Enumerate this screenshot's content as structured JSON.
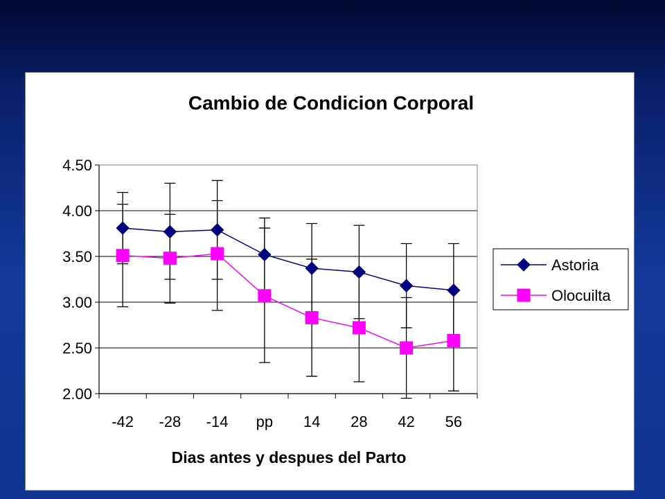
{
  "chart_data": {
    "type": "line",
    "title": "Cambio de Condicion Corporal",
    "xlabel": "Dias antes y despues del Parto",
    "ylabel": "",
    "categories": [
      "-42",
      "-28",
      "-14",
      "pp",
      "14",
      "28",
      "42",
      "56"
    ],
    "ylim": [
      2.0,
      4.5
    ],
    "yticks": [
      "2.00",
      "2.50",
      "3.00",
      "3.50",
      "4.00",
      "4.50"
    ],
    "grid": "horizontal",
    "legend_position": "right",
    "series": [
      {
        "name": "Astoria",
        "marker": "diamond",
        "color": "#000080",
        "values": [
          3.81,
          3.77,
          3.79,
          3.52,
          3.37,
          3.33,
          3.18,
          3.13
        ],
        "error_upper": [
          4.2,
          4.3,
          4.33,
          3.92,
          3.86,
          3.84,
          3.64,
          3.64
        ],
        "error_lower": [
          3.42,
          3.25,
          3.25,
          3.12,
          2.88,
          2.82,
          2.72,
          2.62
        ]
      },
      {
        "name": "Olocuilta",
        "marker": "square",
        "color": "#ff00ff",
        "values": [
          3.51,
          3.48,
          3.53,
          3.07,
          2.83,
          2.72,
          2.5,
          2.58
        ],
        "error_upper": [
          4.07,
          3.96,
          4.11,
          3.81,
          3.47,
          3.31,
          3.05,
          3.13
        ],
        "error_lower": [
          2.95,
          2.99,
          2.91,
          2.34,
          2.19,
          2.13,
          1.95,
          2.03
        ]
      }
    ]
  }
}
